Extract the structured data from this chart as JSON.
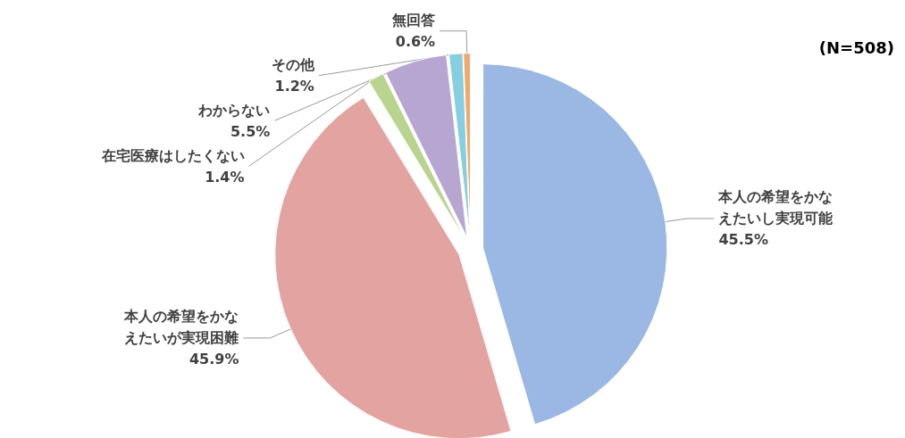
{
  "chart_data": {
    "type": "pie",
    "categories": [
      "本人の希望をかなえたいし実現可能",
      "本人の希望をかなえたいが実現困難",
      "在宅医療はしたくない",
      "わからない",
      "その他",
      "無回答"
    ],
    "values": [
      45.5,
      45.9,
      1.4,
      5.5,
      1.2,
      0.6
    ],
    "value_labels": [
      "45.5%",
      "45.9%",
      "1.4%",
      "5.5%",
      "1.2%",
      "0.6%"
    ],
    "colors": [
      "#9bb7e3",
      "#e3a3a1",
      "#b9d48f",
      "#b7a6d2",
      "#86cfe0",
      "#f2a86a"
    ],
    "legend": false,
    "annotations": [
      "(N=508)"
    ]
  }
}
